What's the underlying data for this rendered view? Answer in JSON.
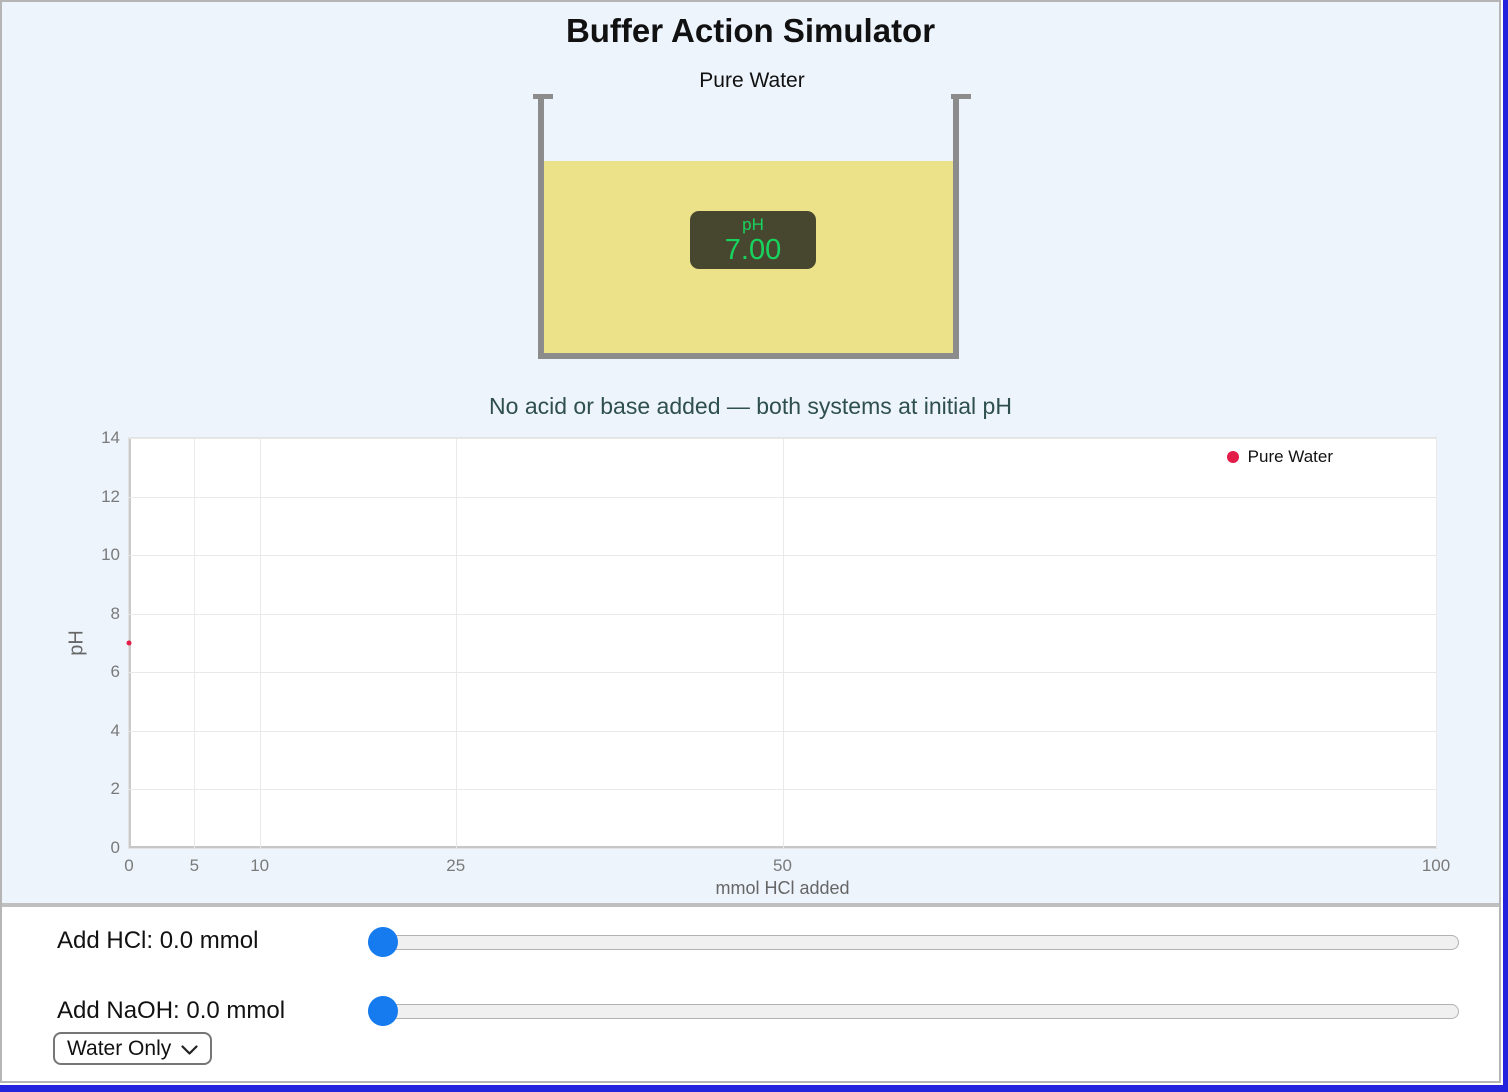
{
  "app": {
    "title": "Buffer Action Simulator"
  },
  "beaker": {
    "label": "Pure Water",
    "meter_label": "pH",
    "meter_value": "7.00",
    "liquid_color": "#ece289",
    "meter_bg_color": "#474730",
    "meter_text_color": "#17d45e"
  },
  "status_text": "No acid or base added — both systems at initial pH",
  "chart_data": {
    "type": "scatter",
    "title": "",
    "xlabel": "mmol HCl added",
    "ylabel": "pH",
    "xlim": [
      0,
      100
    ],
    "ylim": [
      0,
      14
    ],
    "xticks": [
      0,
      5,
      10,
      25,
      50,
      100
    ],
    "yticks": [
      0,
      2,
      4,
      6,
      8,
      10,
      12,
      14
    ],
    "grid": true,
    "legend": {
      "position": "top-right",
      "entries": [
        {
          "label": "Pure Water",
          "color": "#e31c48"
        }
      ]
    },
    "series": [
      {
        "name": "Pure Water",
        "color": "#e31c48",
        "points": [
          {
            "x": 0,
            "y": 7
          }
        ]
      }
    ]
  },
  "controls": {
    "hcl": {
      "label": "Add HCl: 0.0 mmol",
      "thumb_position": 0
    },
    "naoh": {
      "label": "Add NaOH: 0.0 mmol",
      "thumb_position": 0
    },
    "mode_select": {
      "value": "Water Only"
    }
  }
}
